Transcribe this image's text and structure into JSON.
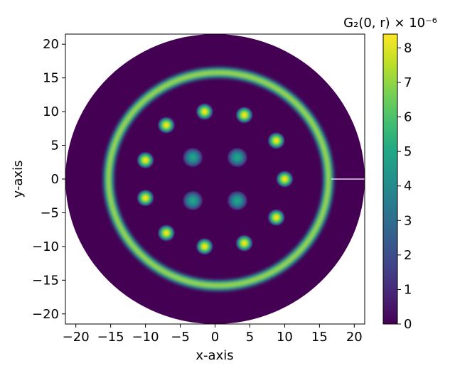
{
  "chart_data": {
    "type": "heatmap",
    "title": "",
    "xlabel": "x-axis",
    "ylabel": "y-axis",
    "xlim": [
      -21.5,
      21.5
    ],
    "ylim": [
      -21.5,
      21.5
    ],
    "x_ticks": [
      -20,
      -15,
      -10,
      -5,
      0,
      5,
      10,
      15,
      20
    ],
    "y_ticks": [
      -20,
      -15,
      -10,
      -5,
      0,
      5,
      10,
      15,
      20
    ],
    "grid": false,
    "disk_radius": 21.5,
    "colormap": "viridis",
    "background_color": "#440154",
    "colorbar": {
      "label": "G₂(0, r) × 10⁻⁶",
      "min": 0,
      "max": 8.4,
      "ticks": [
        0,
        1,
        2,
        3,
        4,
        5,
        6,
        7,
        8
      ]
    },
    "ring": {
      "center": [
        0.5,
        0
      ],
      "radius": 15.8,
      "peak_value": 6.3
    },
    "peaks": [
      {
        "x": -1.5,
        "y": 10.0,
        "value": 8.3
      },
      {
        "x": 4.2,
        "y": 9.5,
        "value": 8.2
      },
      {
        "x": -7.0,
        "y": 8.0,
        "value": 8.1
      },
      {
        "x": 8.8,
        "y": 5.7,
        "value": 8.2
      },
      {
        "x": -10.0,
        "y": 2.8,
        "value": 8.0
      },
      {
        "x": 10.0,
        "y": 0.0,
        "value": 8.4
      },
      {
        "x": -10.0,
        "y": -2.8,
        "value": 8.0
      },
      {
        "x": 8.8,
        "y": -5.7,
        "value": 8.2
      },
      {
        "x": -7.0,
        "y": -8.0,
        "value": 8.1
      },
      {
        "x": 4.2,
        "y": -9.5,
        "value": 8.2
      },
      {
        "x": -1.5,
        "y": -10.0,
        "value": 8.3
      },
      {
        "x": -3.2,
        "y": 3.2,
        "value": 4.2
      },
      {
        "x": 3.2,
        "y": 3.2,
        "value": 4.2
      },
      {
        "x": -3.2,
        "y": -3.2,
        "value": 4.2
      },
      {
        "x": 3.2,
        "y": -3.2,
        "value": 4.2
      }
    ],
    "reference_line": {
      "from": [
        16.7,
        0
      ],
      "to": [
        21.5,
        0
      ],
      "color": "#ffffff"
    }
  }
}
